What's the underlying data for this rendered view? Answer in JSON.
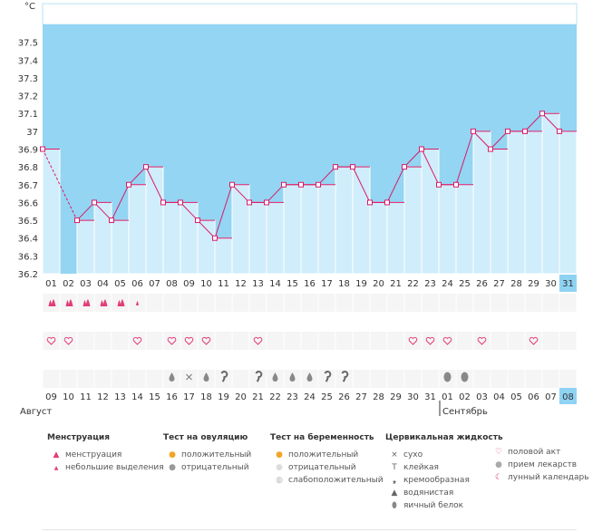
{
  "chart_data": {
    "type": "bar",
    "unit_label": "°C",
    "ylim": [
      36.2,
      37.6
    ],
    "y_ticks": [
      "37.5",
      "37.4",
      "37.3",
      "37.2",
      "37.1",
      "37",
      "36.9",
      "36.8",
      "36.7",
      "36.6",
      "36.5",
      "36.4",
      "36.3",
      "36.2"
    ],
    "cycle_days": [
      "01",
      "02",
      "03",
      "04",
      "05",
      "06",
      "07",
      "08",
      "09",
      "10",
      "11",
      "12",
      "13",
      "14",
      "15",
      "16",
      "17",
      "18",
      "19",
      "20",
      "21",
      "22",
      "23",
      "24",
      "25",
      "26",
      "27",
      "28",
      "29",
      "30",
      "31"
    ],
    "dates": [
      "09",
      "10",
      "11",
      "12",
      "13",
      "14",
      "15",
      "16",
      "17",
      "18",
      "19",
      "20",
      "21",
      "22",
      "23",
      "24",
      "25",
      "26",
      "27",
      "28",
      "29",
      "30",
      "31",
      "01",
      "02",
      "03",
      "04",
      "05",
      "06",
      "07",
      "08"
    ],
    "dates_red": [
      false,
      true,
      true,
      false,
      false,
      false,
      false,
      false,
      true,
      true,
      false,
      false,
      false,
      false,
      false,
      true,
      true,
      false,
      false,
      false,
      false,
      false,
      true,
      true,
      false,
      false,
      false,
      false,
      false,
      true,
      false
    ],
    "values": [
      36.9,
      null,
      36.5,
      36.6,
      36.5,
      36.7,
      36.8,
      36.6,
      36.6,
      36.5,
      36.4,
      36.7,
      36.6,
      36.6,
      36.7,
      36.7,
      36.7,
      36.8,
      36.8,
      36.6,
      36.6,
      36.8,
      36.9,
      36.7,
      36.7,
      37.0,
      36.9,
      37.0,
      37.0,
      37.1,
      37.0
    ],
    "bar_colors": {
      "blank": "#93d5f2",
      "bar": "#d0edfb",
      "bar_edge": "#ffffff",
      "line": "#d81b6a",
      "point_fill": "#ffffff",
      "highlight": "#8fd3f3",
      "row_alt": "#f5f5f5"
    },
    "month_start": "Август",
    "month_next": "Сентябрь",
    "menstruation": [
      "big",
      "big",
      "big",
      "big",
      "big",
      "small",
      "",
      "",
      "",
      "",
      "",
      "",
      "",
      "",
      "",
      "",
      "",
      "",
      "",
      "",
      "",
      "",
      "",
      "",
      "",
      "",
      "",
      "",
      "",
      "",
      ""
    ],
    "intercourse": [
      true,
      true,
      false,
      false,
      false,
      true,
      false,
      true,
      true,
      true,
      false,
      false,
      true,
      false,
      false,
      false,
      false,
      false,
      false,
      false,
      false,
      true,
      true,
      true,
      false,
      true,
      false,
      false,
      true,
      false,
      false
    ],
    "mucus": [
      "",
      "",
      "",
      "",
      "",
      "",
      "",
      "drop",
      "cross",
      "drop",
      "cream",
      "",
      "cream",
      "drop",
      "drop",
      "drop",
      "cream",
      "cream",
      "",
      "",
      "",
      "",
      "",
      "egg",
      "egg",
      "",
      "",
      "",
      "",
      "",
      ""
    ]
  },
  "legend": {
    "menstruation": {
      "title": "Менструация",
      "items": [
        "менструация",
        "небольшие выделения"
      ]
    },
    "ovulation": {
      "title": "Тест на овуляцию",
      "items": [
        "положительный",
        "отрицательный"
      ]
    },
    "pregnancy": {
      "title": "Тест на беременность",
      "items": [
        "положительный",
        "отрицательный",
        "слабоположительный"
      ]
    },
    "mucus": {
      "title": "Цервикальная жидкость",
      "items": [
        "сухо",
        "клейкая",
        "кремообразная",
        "водянистая",
        "яичный белок"
      ]
    },
    "other": {
      "items": [
        "половой акт",
        "прием лекарств",
        "лунный календарь"
      ]
    }
  },
  "icons": {
    "menstruation": "drop-big-icon",
    "small": "drop-small-icon",
    "heart": "heart-icon",
    "cross": "cross-icon",
    "sticky": "t-bar-icon",
    "cream": "comma-icon",
    "water": "drop-icon",
    "egg": "egg-icon",
    "ovu_pos": "circle-orange-icon",
    "ovu_neg": "circle-grey-icon",
    "preg_pos": "circle-orange-icon",
    "preg_neg": "circle-light-icon",
    "preg_weak": "circle-striped-icon",
    "pill": "pill-icon",
    "moon": "moon-icon"
  }
}
